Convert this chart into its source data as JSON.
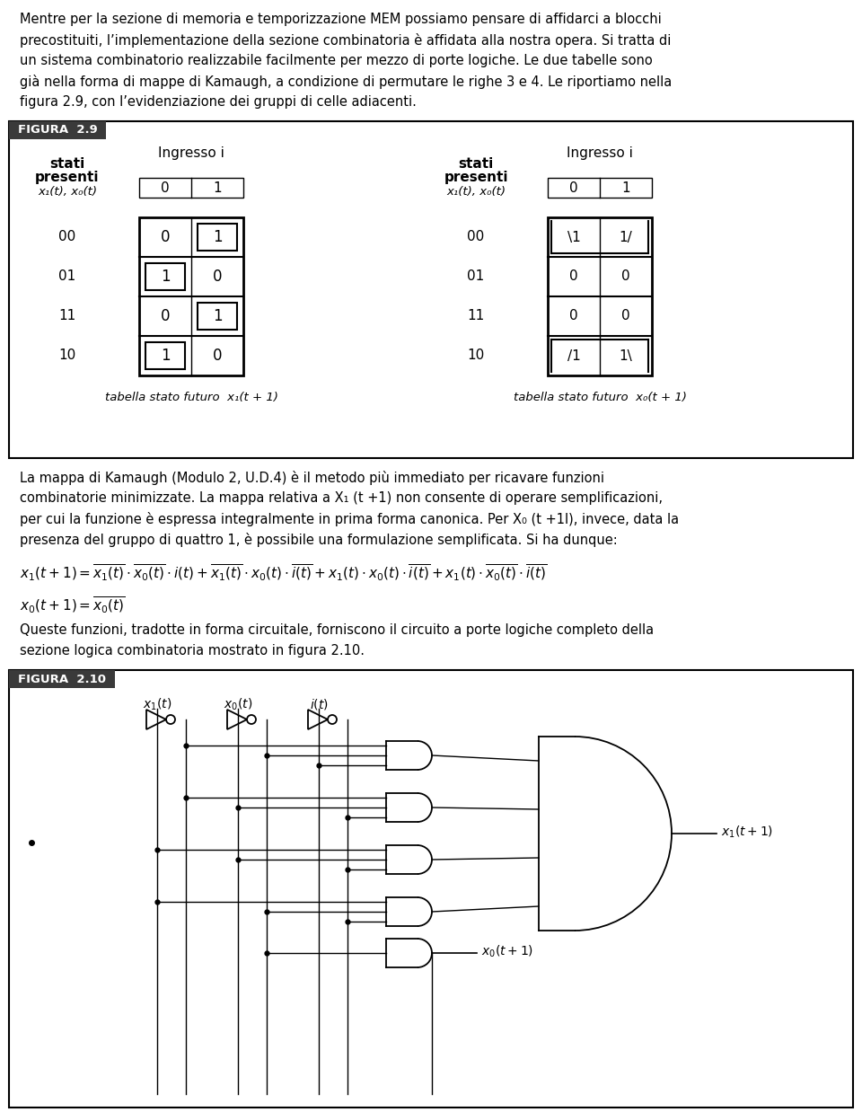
{
  "top_text": [
    "Mentre per la sezione di memoria e temporizzazione MEM possiamo pensare di affidarci a blocchi",
    "precostituiti, l’implementazione della sezione combinatoria è affidata alla nostra opera. Si tratta di",
    "un sistema combinatorio realizzabile facilmente per mezzo di porte logiche. Le due tabelle sono",
    "già nella forma di mappe di Kamaugh, a condizione di permutare le righe 3 e 4. Le riportiamo nella",
    "figura 2.9, con l’evidenziazione dei gruppi di celle adiacenti."
  ],
  "fig29_label": "FIGURA  2.9",
  "ingresso_i": "Ingresso i",
  "rows": [
    "00",
    "01",
    "11",
    "10"
  ],
  "table1_data": [
    [
      "0",
      "1"
    ],
    [
      "1",
      "0"
    ],
    [
      "0",
      "1"
    ],
    [
      "1",
      "0"
    ]
  ],
  "table1_boxed": [
    [
      false,
      true
    ],
    [
      true,
      false
    ],
    [
      false,
      true
    ],
    [
      true,
      false
    ]
  ],
  "table1_caption": "tabella stato futuro  x₁(t + 1)",
  "table2_data": [
    [
      "\\1",
      "1/"
    ],
    [
      "0",
      "0"
    ],
    [
      "0",
      "0"
    ],
    [
      "/1",
      "1\\"
    ]
  ],
  "table2_caption": "tabella stato futuro  x₀(t + 1)",
  "middle_text": [
    "La mappa di Kamaugh (Modulo 2, U.D.4) è il metodo più immediato per ricavare funzioni",
    "combinatorie minimizzate. La mappa relativa a X₁ (t +1) non consente di operare semplificazioni,",
    "per cui la funzione è espressa integralmente in prima forma canonica. Per X₀ (t +1l), invece, data la",
    "presenza del gruppo di quattro 1, è possibile una formulazione semplificata. Si ha dunque:"
  ],
  "bottom_text": [
    "Queste funzioni, tradotte in forma circuitale, forniscono il circuito a porte logiche completo della",
    "sezione logica combinatoria mostrato in figura 2.10."
  ],
  "fig210_label": "FIGURA  2.10",
  "label_bg": "#3a3a3a",
  "label_fg": "#ffffff"
}
